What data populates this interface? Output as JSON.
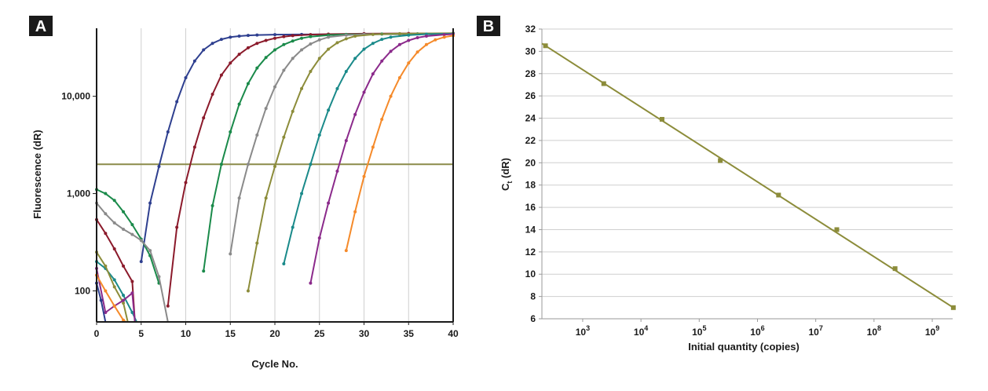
{
  "chart_data": [
    {
      "panel": "A",
      "type": "line",
      "xlabel": "Cycle No.",
      "ylabel": "Fluorescence (dR)",
      "y_scale": "log",
      "xlim": [
        0,
        40
      ],
      "ylim": [
        48,
        50000
      ],
      "x_ticks": [
        "0",
        "5",
        "10",
        "15",
        "20",
        "25",
        "30",
        "35",
        "40"
      ],
      "y_ticks": [
        {
          "value": 100,
          "label": "100"
        },
        {
          "value": 1000,
          "label": "1,000"
        },
        {
          "value": 10000,
          "label": "10,000"
        }
      ],
      "grid": "vertical",
      "threshold": {
        "value": 2000,
        "color": "#8b8b4a"
      },
      "series": [
        {
          "color": "#2e3f8f",
          "values": [
            [
              5,
              200
            ],
            [
              6,
              800
            ],
            [
              7,
              1900
            ],
            [
              8,
              4300
            ],
            [
              9,
              8800
            ],
            [
              10,
              15500
            ],
            [
              11,
              23000
            ],
            [
              12,
              30000
            ],
            [
              13,
              35000
            ],
            [
              14,
              38500
            ],
            [
              15,
              40500
            ],
            [
              16,
              41500
            ],
            [
              17,
              42200
            ],
            [
              18,
              42600
            ],
            [
              20,
              43000
            ],
            [
              23,
              43200
            ],
            [
              26,
              43300
            ],
            [
              30,
              43400
            ],
            [
              34,
              43500
            ],
            [
              40,
              43600
            ]
          ]
        },
        {
          "color": "#8b1a2b",
          "values": [
            [
              8,
              70
            ],
            [
              9,
              450
            ],
            [
              10,
              1300
            ],
            [
              11,
              3000
            ],
            [
              12,
              6000
            ],
            [
              13,
              10500
            ],
            [
              14,
              16500
            ],
            [
              15,
              22000
            ],
            [
              16,
              27000
            ],
            [
              17,
              31500
            ],
            [
              18,
              35000
            ],
            [
              19,
              37500
            ],
            [
              20,
              39500
            ],
            [
              21,
              41000
            ],
            [
              22,
              42000
            ],
            [
              24,
              43000
            ],
            [
              26,
              43500
            ],
            [
              30,
              44000
            ],
            [
              35,
              44200
            ],
            [
              40,
              44300
            ]
          ]
        },
        {
          "color": "#1a8a4a",
          "values": [
            [
              12,
              160
            ],
            [
              13,
              750
            ],
            [
              14,
              2000
            ],
            [
              15,
              4300
            ],
            [
              16,
              8300
            ],
            [
              17,
              13500
            ],
            [
              18,
              19500
            ],
            [
              19,
              25000
            ],
            [
              20,
              30000
            ],
            [
              21,
              34000
            ],
            [
              22,
              37000
            ],
            [
              23,
              39500
            ],
            [
              24,
              41000
            ],
            [
              26,
              42500
            ],
            [
              28,
              43200
            ],
            [
              32,
              43600
            ],
            [
              36,
              43800
            ],
            [
              40,
              44000
            ]
          ]
        },
        {
          "color": "#8a8a8a",
          "values": [
            [
              15,
              240
            ],
            [
              16,
              900
            ],
            [
              17,
              2000
            ],
            [
              18,
              4000
            ],
            [
              19,
              7500
            ],
            [
              20,
              12500
            ],
            [
              21,
              18500
            ],
            [
              22,
              24500
            ],
            [
              23,
              30000
            ],
            [
              24,
              34500
            ],
            [
              25,
              38000
            ],
            [
              26,
              40500
            ],
            [
              28,
              42500
            ],
            [
              30,
              43300
            ],
            [
              34,
              43800
            ],
            [
              40,
              44000
            ]
          ]
        },
        {
          "color": "#8c8c3a",
          "values": [
            [
              17,
              100
            ],
            [
              18,
              310
            ],
            [
              19,
              900
            ],
            [
              20,
              1900
            ],
            [
              21,
              3800
            ],
            [
              22,
              7000
            ],
            [
              23,
              12000
            ],
            [
              24,
              18000
            ],
            [
              25,
              24500
            ],
            [
              26,
              30500
            ],
            [
              27,
              35500
            ],
            [
              28,
              39000
            ],
            [
              29,
              41500
            ],
            [
              31,
              43200
            ],
            [
              34,
              44000
            ],
            [
              40,
              44500
            ]
          ]
        },
        {
          "color": "#1a8a8a",
          "values": [
            [
              21,
              190
            ],
            [
              22,
              450
            ],
            [
              23,
              1000
            ],
            [
              24,
              2000
            ],
            [
              25,
              4000
            ],
            [
              26,
              7200
            ],
            [
              27,
              12000
            ],
            [
              28,
              18000
            ],
            [
              29,
              24500
            ],
            [
              30,
              30500
            ],
            [
              31,
              35000
            ],
            [
              32,
              38500
            ],
            [
              33,
              40500
            ],
            [
              35,
              42500
            ],
            [
              37,
              43500
            ],
            [
              40,
              44000
            ]
          ]
        },
        {
          "color": "#8b2a8b",
          "values": [
            [
              24,
              120
            ],
            [
              25,
              350
            ],
            [
              26,
              800
            ],
            [
              27,
              1700
            ],
            [
              28,
              3500
            ],
            [
              29,
              6500
            ],
            [
              30,
              11000
            ],
            [
              31,
              17000
            ],
            [
              32,
              23000
            ],
            [
              33,
              29000
            ],
            [
              34,
              34000
            ],
            [
              35,
              37500
            ],
            [
              36,
              40000
            ],
            [
              37,
              41500
            ],
            [
              39,
              43000
            ],
            [
              40,
              43500
            ]
          ]
        },
        {
          "color": "#f58a2a",
          "values": [
            [
              28,
              260
            ],
            [
              29,
              650
            ],
            [
              30,
              1500
            ],
            [
              31,
              3000
            ],
            [
              32,
              5800
            ],
            [
              33,
              10000
            ],
            [
              34,
              15500
            ],
            [
              35,
              22000
            ],
            [
              36,
              28500
            ],
            [
              37,
              34000
            ],
            [
              38,
              38000
            ],
            [
              39,
              40500
            ],
            [
              40,
              42000
            ]
          ]
        },
        {
          "color": "#1a8a4a",
          "values": [
            [
              0,
              1100
            ],
            [
              1,
              1000
            ],
            [
              2,
              850
            ],
            [
              3,
              650
            ],
            [
              4,
              480
            ],
            [
              5,
              340
            ],
            [
              6,
              230
            ],
            [
              7,
              120
            ]
          ]
        },
        {
          "color": "#8a8a8a",
          "values": [
            [
              0,
              800
            ],
            [
              1,
              620
            ],
            [
              2,
              500
            ],
            [
              3,
              430
            ],
            [
              4,
              380
            ],
            [
              5,
              330
            ],
            [
              6,
              260
            ],
            [
              7,
              140
            ],
            [
              8,
              48
            ]
          ]
        },
        {
          "color": "#8b1a2b",
          "values": [
            [
              0,
              540
            ],
            [
              1,
              390
            ],
            [
              2,
              270
            ],
            [
              3,
              180
            ],
            [
              4,
              125
            ],
            [
              4.3,
              48
            ]
          ]
        },
        {
          "color": "#1a8a8a",
          "values": [
            [
              0,
              200
            ],
            [
              1,
              170
            ],
            [
              2,
              130
            ],
            [
              3,
              90
            ],
            [
              4,
              60
            ],
            [
              4.5,
              48
            ]
          ]
        },
        {
          "color": "#8c8c3a",
          "values": [
            [
              0,
              250
            ],
            [
              1,
              180
            ],
            [
              2,
              110
            ],
            [
              3,
              75
            ],
            [
              3.5,
              48
            ]
          ]
        },
        {
          "color": "#8b2a8b",
          "values": [
            [
              0,
              170
            ],
            [
              1,
              60
            ],
            [
              2,
              70
            ],
            [
              3,
              80
            ],
            [
              4,
              95
            ],
            [
              4.3,
              48
            ]
          ]
        },
        {
          "color": "#f58a2a",
          "values": [
            [
              0,
              145
            ],
            [
              1,
              100
            ],
            [
              2,
              70
            ],
            [
              3,
              50
            ],
            [
              3.3,
              48
            ]
          ]
        },
        {
          "color": "#2e3f8f",
          "values": [
            [
              0,
              120
            ],
            [
              0.5,
              80
            ],
            [
              1,
              48
            ]
          ]
        }
      ]
    },
    {
      "panel": "B",
      "type": "scatter",
      "xlabel": "Initial quantity (copies)",
      "ylabel_main": "C",
      "ylabel_sub": "t",
      "ylabel_rest": " (dR)",
      "x_scale": "log",
      "xlim_log10": [
        2.3,
        9.35
      ],
      "ylim": [
        6,
        32
      ],
      "y_ticks": [
        6,
        8,
        10,
        12,
        14,
        16,
        18,
        20,
        22,
        24,
        26,
        28,
        30,
        32
      ],
      "x_ticks": [
        {
          "exp": 3,
          "base": "10",
          "sup": "3"
        },
        {
          "exp": 4,
          "base": "10",
          "sup": "4"
        },
        {
          "exp": 5,
          "base": "10",
          "sup": "5"
        },
        {
          "exp": 6,
          "base": "10",
          "sup": "6"
        },
        {
          "exp": 7,
          "base": "10",
          "sup": "7"
        },
        {
          "exp": 8,
          "base": "10",
          "sup": "8"
        },
        {
          "exp": 9,
          "base": "10",
          "sup": "9"
        }
      ],
      "grid": "horizontal",
      "color": "#8c8c3a",
      "points": [
        {
          "x": 230,
          "y": 30.5
        },
        {
          "x": 2300,
          "y": 27.1
        },
        {
          "x": 23000,
          "y": 23.9
        },
        {
          "x": 230000,
          "y": 20.2
        },
        {
          "x": 2300000,
          "y": 17.1
        },
        {
          "x": 23000000,
          "y": 14.0
        },
        {
          "x": 230000000,
          "y": 10.5
        },
        {
          "x": 2300000000,
          "y": 7.0
        }
      ],
      "fit_line": {
        "x": [
          200,
          2300000000
        ],
        "y": [
          30.7,
          7.0
        ]
      }
    }
  ],
  "labels": {
    "panel_a": "A",
    "panel_b": "B"
  }
}
